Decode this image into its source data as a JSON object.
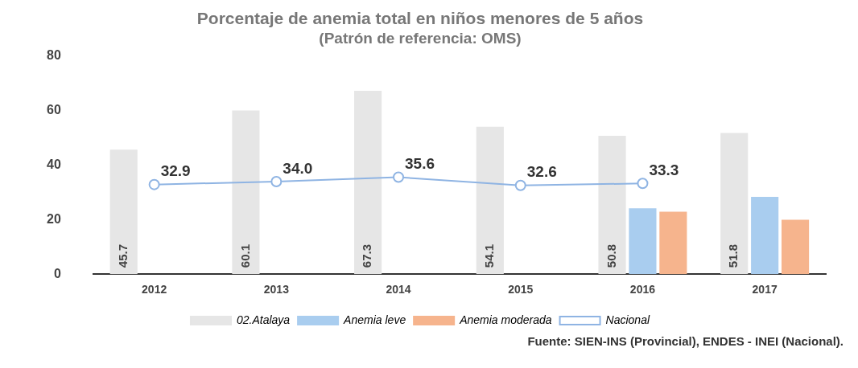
{
  "chart_data": {
    "type": "bar",
    "title": "Porcentaje de anemia total en niños menores de 5 años",
    "subtitle": "(Patrón de referencia: OMS)",
    "categories": [
      "2012",
      "2013",
      "2014",
      "2015",
      "2016",
      "2017"
    ],
    "series": [
      {
        "name": "02.Atalaya",
        "color": "#e6e6e6",
        "values": [
          45.7,
          60.1,
          67.3,
          54.1,
          50.8,
          51.8
        ],
        "value_labels": [
          "45.7",
          "60.1",
          "67.3",
          "54.1",
          "50.8",
          "51.8"
        ]
      },
      {
        "name": "Anemia leve",
        "color": "#a9cdef",
        "values": [
          null,
          null,
          null,
          null,
          24.2,
          28.4
        ]
      },
      {
        "name": "Anemia moderada",
        "color": "#f6b48d",
        "values": [
          null,
          null,
          null,
          null,
          22.9,
          20
        ]
      },
      {
        "name": "Nacional",
        "type": "line",
        "color": "#8fb4e3",
        "marker": "circle",
        "values": [
          32.9,
          34.0,
          35.6,
          32.6,
          33.3,
          null
        ],
        "value_labels": [
          "32.9",
          "34.0",
          "35.6",
          "32.6",
          "33.3",
          null
        ]
      }
    ],
    "ylim": [
      0,
      80
    ],
    "yticks": [
      0,
      20,
      40,
      60,
      80
    ],
    "grid": false,
    "legend": "bottom",
    "annotations": [
      "Fuente: SIEN-INS (Provincial), ENDES - INEI (Nacional)."
    ]
  }
}
